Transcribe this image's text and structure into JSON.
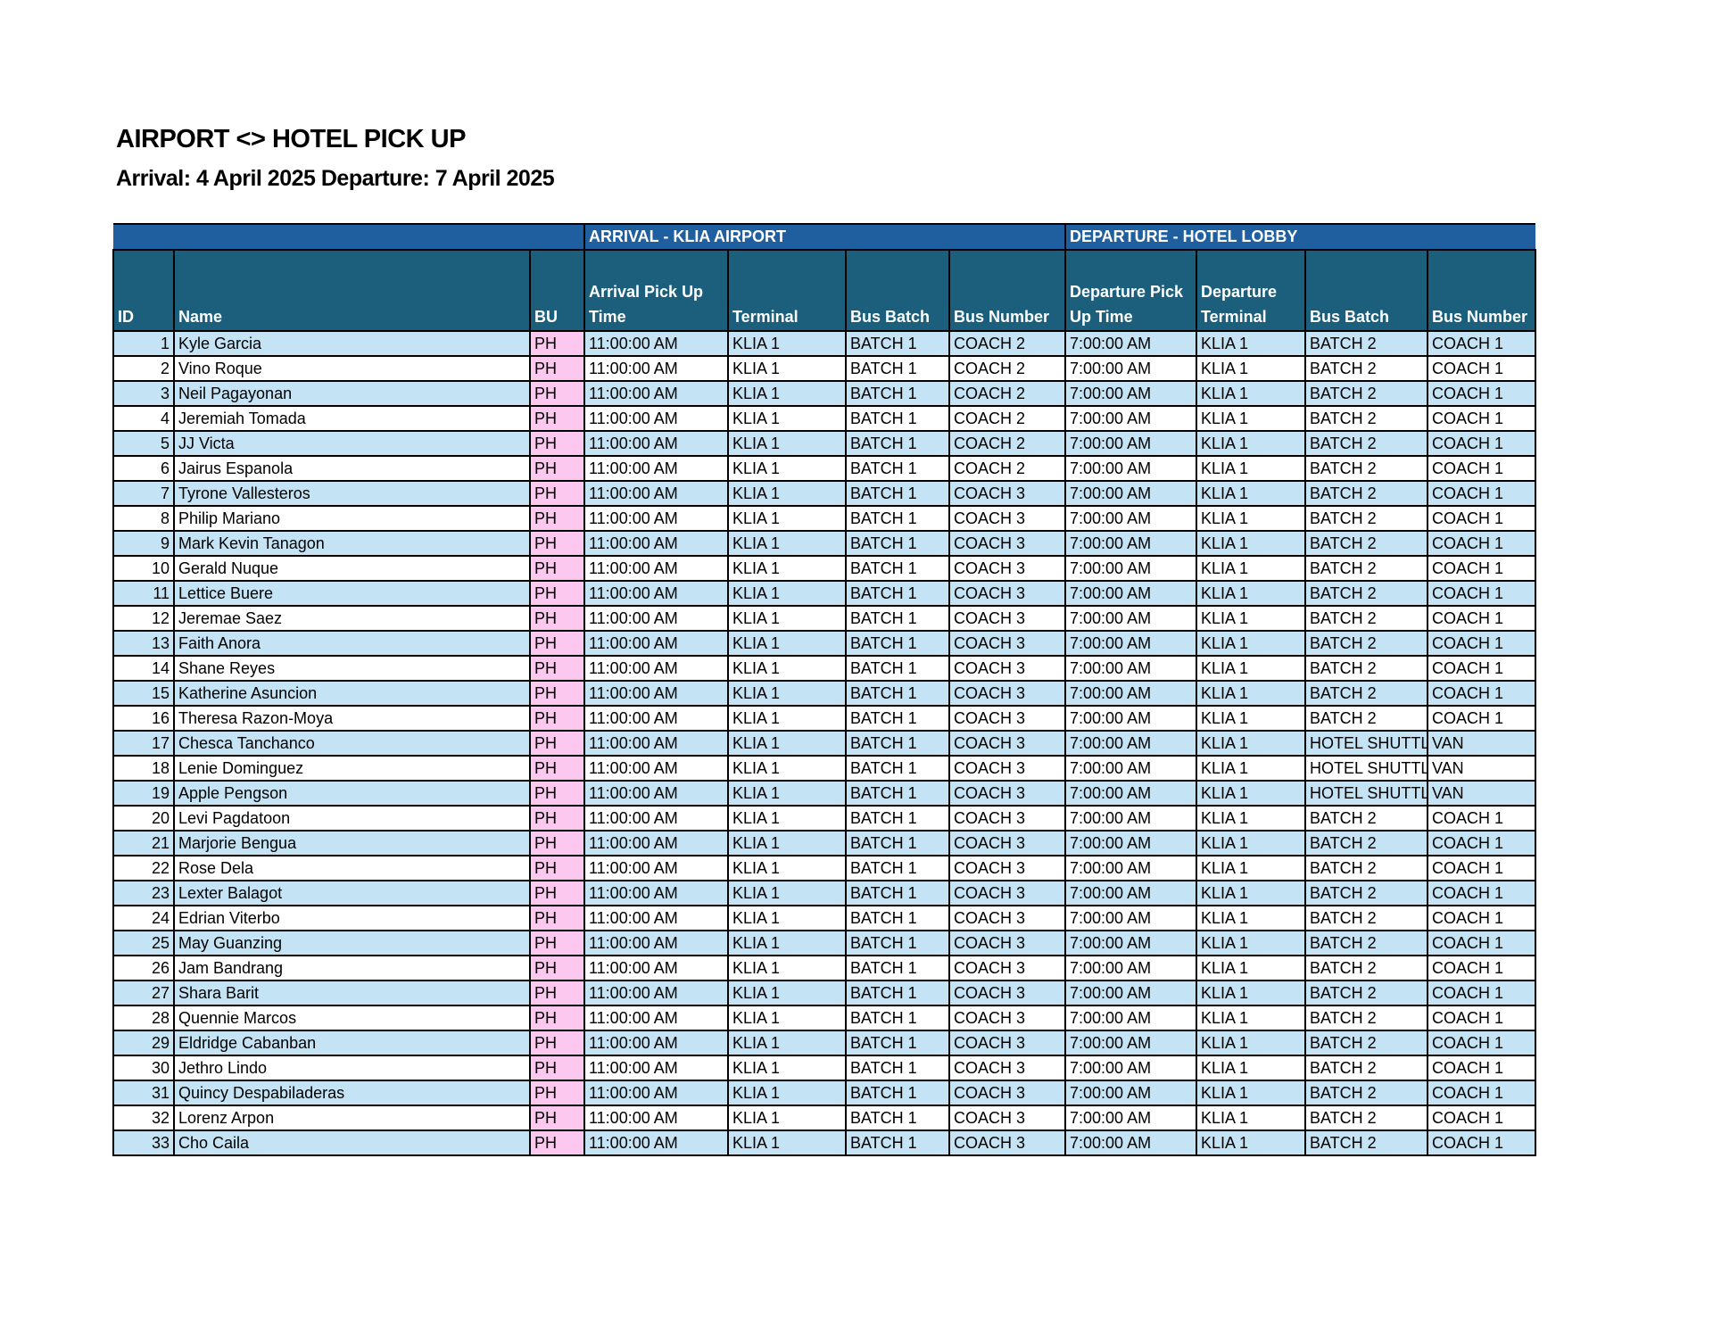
{
  "header": {
    "title": "AIRPORT <> HOTEL PICK UP",
    "subtitle": "Arrival: 4 April 2025 Departure: 7 April 2025"
  },
  "table": {
    "groups": [
      "ARRIVAL - KLIA AIRPORT",
      "DEPARTURE - HOTEL LOBBY"
    ],
    "columns": [
      "ID",
      "Name",
      "BU",
      "Arrival Pick Up Time",
      "Terminal",
      "Bus Batch",
      "Bus Number",
      "Departure Pick Up Time",
      "Departure Terminal",
      "Bus Batch",
      "Bus Number"
    ],
    "rows": [
      [
        1,
        "Kyle Garcia",
        "PH",
        "11:00:00 AM",
        "KLIA 1",
        "BATCH 1",
        "COACH 2",
        "7:00:00 AM",
        "KLIA 1",
        "BATCH 2",
        "COACH 1"
      ],
      [
        2,
        "Vino Roque",
        "PH",
        "11:00:00 AM",
        "KLIA 1",
        "BATCH 1",
        "COACH 2",
        "7:00:00 AM",
        "KLIA 1",
        "BATCH 2",
        "COACH 1"
      ],
      [
        3,
        "Neil Pagayonan",
        "PH",
        "11:00:00 AM",
        "KLIA 1",
        "BATCH 1",
        "COACH 2",
        "7:00:00 AM",
        "KLIA 1",
        "BATCH 2",
        "COACH 1"
      ],
      [
        4,
        "Jeremiah Tomada",
        "PH",
        "11:00:00 AM",
        "KLIA 1",
        "BATCH 1",
        "COACH 2",
        "7:00:00 AM",
        "KLIA 1",
        "BATCH 2",
        "COACH 1"
      ],
      [
        5,
        "JJ Victa",
        "PH",
        "11:00:00 AM",
        "KLIA 1",
        "BATCH 1",
        "COACH 2",
        "7:00:00 AM",
        "KLIA 1",
        "BATCH 2",
        "COACH 1"
      ],
      [
        6,
        "Jairus Espanola",
        "PH",
        "11:00:00 AM",
        "KLIA 1",
        "BATCH 1",
        "COACH 2",
        "7:00:00 AM",
        "KLIA 1",
        "BATCH 2",
        "COACH 1"
      ],
      [
        7,
        "Tyrone Vallesteros",
        "PH",
        "11:00:00 AM",
        "KLIA 1",
        "BATCH 1",
        "COACH 3",
        "7:00:00 AM",
        "KLIA 1",
        "BATCH 2",
        "COACH 1"
      ],
      [
        8,
        "Philip Mariano",
        "PH",
        "11:00:00 AM",
        "KLIA 1",
        "BATCH 1",
        "COACH 3",
        "7:00:00 AM",
        "KLIA 1",
        "BATCH 2",
        "COACH 1"
      ],
      [
        9,
        "Mark Kevin Tanagon",
        "PH",
        "11:00:00 AM",
        "KLIA 1",
        "BATCH 1",
        "COACH 3",
        "7:00:00 AM",
        "KLIA 1",
        "BATCH 2",
        "COACH 1"
      ],
      [
        10,
        "Gerald Nuque",
        "PH",
        "11:00:00 AM",
        "KLIA 1",
        "BATCH 1",
        "COACH 3",
        "7:00:00 AM",
        "KLIA 1",
        "BATCH 2",
        "COACH 1"
      ],
      [
        11,
        "Lettice Buere",
        "PH",
        "11:00:00 AM",
        "KLIA 1",
        "BATCH 1",
        "COACH 3",
        "7:00:00 AM",
        "KLIA 1",
        "BATCH 2",
        "COACH 1"
      ],
      [
        12,
        "Jeremae Saez",
        "PH",
        "11:00:00 AM",
        "KLIA 1",
        "BATCH 1",
        "COACH 3",
        "7:00:00 AM",
        "KLIA 1",
        "BATCH 2",
        "COACH 1"
      ],
      [
        13,
        "Faith Anora",
        "PH",
        "11:00:00 AM",
        "KLIA 1",
        "BATCH 1",
        "COACH 3",
        "7:00:00 AM",
        "KLIA 1",
        "BATCH 2",
        "COACH 1"
      ],
      [
        14,
        "Shane Reyes",
        "PH",
        "11:00:00 AM",
        "KLIA 1",
        "BATCH 1",
        "COACH 3",
        "7:00:00 AM",
        "KLIA 1",
        "BATCH 2",
        "COACH 1"
      ],
      [
        15,
        "Katherine Asuncion",
        "PH",
        "11:00:00 AM",
        "KLIA 1",
        "BATCH 1",
        "COACH 3",
        "7:00:00 AM",
        "KLIA 1",
        "BATCH 2",
        "COACH 1"
      ],
      [
        16,
        "Theresa Razon-Moya",
        "PH",
        "11:00:00 AM",
        "KLIA 1",
        "BATCH 1",
        "COACH 3",
        "7:00:00 AM",
        "KLIA 1",
        "BATCH 2",
        "COACH 1"
      ],
      [
        17,
        "Chesca Tanchanco",
        "PH",
        "11:00:00 AM",
        "KLIA 1",
        "BATCH 1",
        "COACH 3",
        "7:00:00 AM",
        "KLIA 1",
        "HOTEL SHUTTL",
        "VAN"
      ],
      [
        18,
        "Lenie Dominguez",
        "PH",
        "11:00:00 AM",
        "KLIA 1",
        "BATCH 1",
        "COACH 3",
        "7:00:00 AM",
        "KLIA 1",
        "HOTEL SHUTTL",
        "VAN"
      ],
      [
        19,
        "Apple Pengson",
        "PH",
        "11:00:00 AM",
        "KLIA 1",
        "BATCH 1",
        "COACH 3",
        "7:00:00 AM",
        "KLIA 1",
        "HOTEL SHUTTL",
        "VAN"
      ],
      [
        20,
        "Levi Pagdatoon",
        "PH",
        "11:00:00 AM",
        "KLIA 1",
        "BATCH 1",
        "COACH 3",
        "7:00:00 AM",
        "KLIA 1",
        "BATCH 2",
        "COACH 1"
      ],
      [
        21,
        "Marjorie Bengua",
        "PH",
        "11:00:00 AM",
        "KLIA 1",
        "BATCH 1",
        "COACH 3",
        "7:00:00 AM",
        "KLIA 1",
        "BATCH 2",
        "COACH 1"
      ],
      [
        22,
        "Rose Dela",
        "PH",
        "11:00:00 AM",
        "KLIA 1",
        "BATCH 1",
        "COACH 3",
        "7:00:00 AM",
        "KLIA 1",
        "BATCH 2",
        "COACH 1"
      ],
      [
        23,
        "Lexter Balagot",
        "PH",
        "11:00:00 AM",
        "KLIA 1",
        "BATCH 1",
        "COACH 3",
        "7:00:00 AM",
        "KLIA 1",
        "BATCH 2",
        "COACH 1"
      ],
      [
        24,
        "Edrian Viterbo",
        "PH",
        "11:00:00 AM",
        "KLIA 1",
        "BATCH 1",
        "COACH 3",
        "7:00:00 AM",
        "KLIA 1",
        "BATCH 2",
        "COACH 1"
      ],
      [
        25,
        "May Guanzing",
        "PH",
        "11:00:00 AM",
        "KLIA 1",
        "BATCH 1",
        "COACH 3",
        "7:00:00 AM",
        "KLIA 1",
        "BATCH 2",
        "COACH 1"
      ],
      [
        26,
        "Jam Bandrang",
        "PH",
        "11:00:00 AM",
        "KLIA 1",
        "BATCH 1",
        "COACH 3",
        "7:00:00 AM",
        "KLIA 1",
        "BATCH 2",
        "COACH 1"
      ],
      [
        27,
        "Shara Barit",
        "PH",
        "11:00:00 AM",
        "KLIA 1",
        "BATCH 1",
        "COACH 3",
        "7:00:00 AM",
        "KLIA 1",
        "BATCH 2",
        "COACH 1"
      ],
      [
        28,
        "Quennie Marcos",
        "PH",
        "11:00:00 AM",
        "KLIA 1",
        "BATCH 1",
        "COACH 3",
        "7:00:00 AM",
        "KLIA 1",
        "BATCH 2",
        "COACH 1"
      ],
      [
        29,
        "Eldridge Cabanban",
        "PH",
        "11:00:00 AM",
        "KLIA 1",
        "BATCH 1",
        "COACH 3",
        "7:00:00 AM",
        "KLIA 1",
        "BATCH 2",
        "COACH 1"
      ],
      [
        30,
        "Jethro Lindo",
        "PH",
        "11:00:00 AM",
        "KLIA 1",
        "BATCH 1",
        "COACH 3",
        "7:00:00 AM",
        "KLIA 1",
        "BATCH 2",
        "COACH 1"
      ],
      [
        31,
        "Quincy Despabiladeras",
        "PH",
        "11:00:00 AM",
        "KLIA 1",
        "BATCH 1",
        "COACH 3",
        "7:00:00 AM",
        "KLIA 1",
        "BATCH 2",
        "COACH 1"
      ],
      [
        32,
        "Lorenz Arpon",
        "PH",
        "11:00:00 AM",
        "KLIA 1",
        "BATCH 1",
        "COACH 3",
        "7:00:00 AM",
        "KLIA 1",
        "BATCH 2",
        "COACH 1"
      ],
      [
        33,
        "Cho Caila",
        "PH",
        "11:00:00 AM",
        "KLIA 1",
        "BATCH 1",
        "COACH 3",
        "7:00:00 AM",
        "KLIA 1",
        "BATCH 2",
        "COACH 1"
      ]
    ]
  }
}
